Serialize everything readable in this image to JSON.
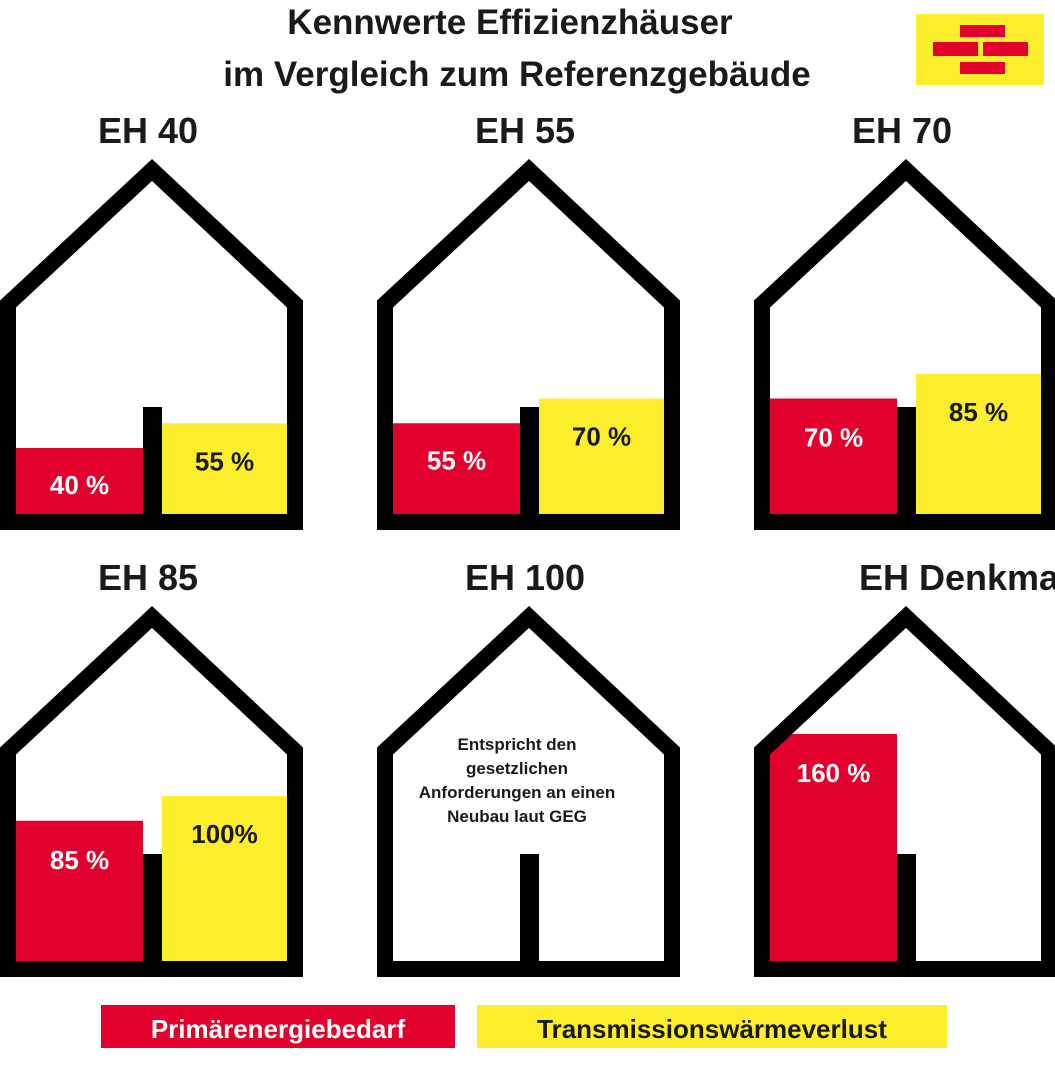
{
  "title_lines": [
    "Kennwerte Effizienzhäuser",
    "im Vergleich zum Referenzgebäude"
  ],
  "colors": {
    "primary": "#e2002d",
    "transmission": "#fdee2d",
    "outline": "#000000",
    "logo_bricks": "#e2002d",
    "logo_bg": "#fdee2d"
  },
  "logo": {
    "icon": "building-society-brick-logo-icon"
  },
  "legend": [
    {
      "key": "primary",
      "label": "Primärenergiebedarf",
      "color": "#e2002d",
      "text_color": "#ffffff"
    },
    {
      "key": "transmission",
      "label": "Transmissionswärmeverlust",
      "color": "#fdee2d",
      "text_color": "#1a1a1a"
    }
  ],
  "chart_data": {
    "type": "bar",
    "title": "Kennwerte Effizienzhäuser im Vergleich zum Referenzgebäude",
    "categories": [
      "EH 40",
      "EH 55",
      "EH 70",
      "EH 85",
      "EH 100",
      "EH Denkmal"
    ],
    "series": [
      {
        "name": "Primärenergiebedarf",
        "values": [
          40,
          55,
          70,
          85,
          null,
          160
        ]
      },
      {
        "name": "Transmissionswärmeverlust",
        "values": [
          55,
          70,
          85,
          100,
          null,
          null
        ]
      }
    ],
    "value_labels": [
      [
        "40 %",
        "55 %"
      ],
      [
        "55 %",
        "70 %"
      ],
      [
        "70 %",
        "85 %"
      ],
      [
        "85 %",
        "100%"
      ],
      [
        null,
        null
      ],
      [
        "160 %",
        null
      ]
    ],
    "notes": [
      null,
      null,
      null,
      null,
      [
        "Entspricht den",
        "gesetzlichen",
        "Anforderungen an einen",
        "Neubau laut GEG"
      ],
      null
    ],
    "unit": "%",
    "legend_position": "bottom"
  }
}
